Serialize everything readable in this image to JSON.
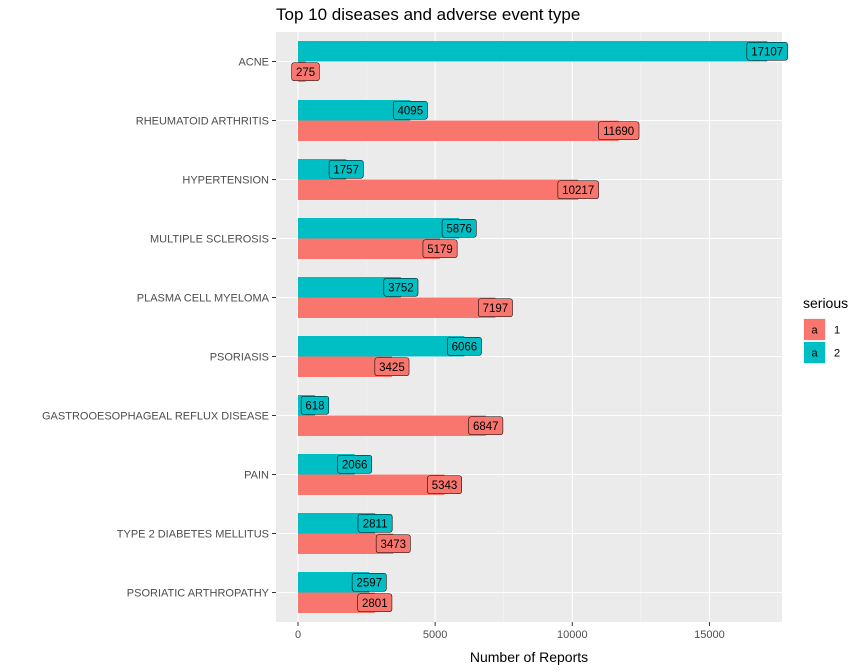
{
  "chart_data": {
    "type": "bar",
    "orientation": "horizontal",
    "title": "Top 10 diseases and adverse event type",
    "xlabel": "Number of Reports",
    "ylabel": "",
    "xlim": [
      0,
      17800
    ],
    "x_ticks": [
      0,
      5000,
      10000,
      15000
    ],
    "grid": true,
    "legend_position": "right",
    "legend_title": "serious",
    "legend_key_glyph": "a",
    "categories": [
      "ACNE",
      "RHEUMATOID ARTHRITIS",
      "HYPERTENSION",
      "MULTIPLE SCLEROSIS",
      "PLASMA CELL MYELOMA",
      "PSORIASIS",
      "GASTROOESOPHAGEAL REFLUX DISEASE",
      "PAIN",
      "TYPE 2 DIABETES MELLITUS",
      "PSORIATIC ARTHROPATHY"
    ],
    "series": [
      {
        "name": "1",
        "color": "#F8766D",
        "values": [
          275,
          11690,
          10217,
          5179,
          7197,
          3425,
          6847,
          5343,
          3473,
          2801
        ]
      },
      {
        "name": "2",
        "color": "#00BFC4",
        "values": [
          17107,
          4095,
          1757,
          5876,
          3752,
          6066,
          618,
          2066,
          2811,
          2597
        ]
      }
    ]
  }
}
